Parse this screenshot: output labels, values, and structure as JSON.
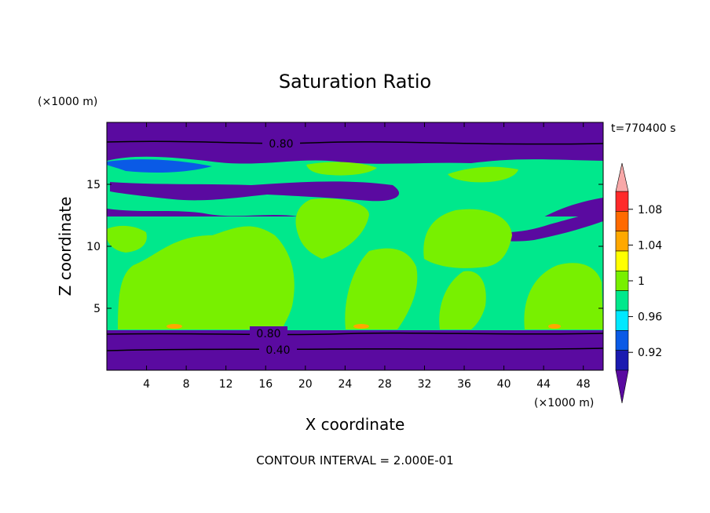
{
  "chart_data": {
    "type": "heatmap",
    "title": "Saturation Ratio",
    "xlabel": "X coordinate",
    "ylabel": "Z coordinate",
    "x_unit": "(×1000 m)",
    "y_unit": "(×1000 m)",
    "time_label": "t=770400 s",
    "footer": "CONTOUR INTERVAL = 2.000E-01",
    "xlim": [
      0,
      50
    ],
    "ylim": [
      0,
      20
    ],
    "x_ticks": [
      "4",
      "8",
      "12",
      "16",
      "20",
      "24",
      "28",
      "32",
      "36",
      "40",
      "44",
      "48"
    ],
    "y_ticks": [
      "5",
      "10",
      "15"
    ],
    "colorbar": {
      "tick_labels": [
        "1.08",
        "1.04",
        "1",
        "0.96",
        "0.92"
      ],
      "levels": [
        0.9,
        0.92,
        0.94,
        0.96,
        0.98,
        1.0,
        1.02,
        1.04,
        1.06,
        1.08,
        1.1
      ],
      "colors": [
        "#5a0aa0",
        "#1a1ab0",
        "#0a5ae6",
        "#00e8ff",
        "#00e88c",
        "#78f000",
        "#ffff00",
        "#ffa800",
        "#ff6a00",
        "#ff2a2a",
        "#f8a8a8"
      ]
    },
    "contour_labels": [
      "0.80",
      "0.80",
      "0.40"
    ],
    "layers": [
      {
        "z": [
          0,
          1.8
        ],
        "value": "< 0.90"
      },
      {
        "z": [
          1.8,
          3.2
        ],
        "value": "< 0.90"
      },
      {
        "z": [
          3.2,
          12.5
        ],
        "value": "0.98 – 1.02"
      },
      {
        "z": [
          12.5,
          17.0
        ],
        "value": "mixed 0.90 – 1.02"
      },
      {
        "z": [
          17.0,
          20.0
        ],
        "value": "< 0.90"
      }
    ]
  }
}
